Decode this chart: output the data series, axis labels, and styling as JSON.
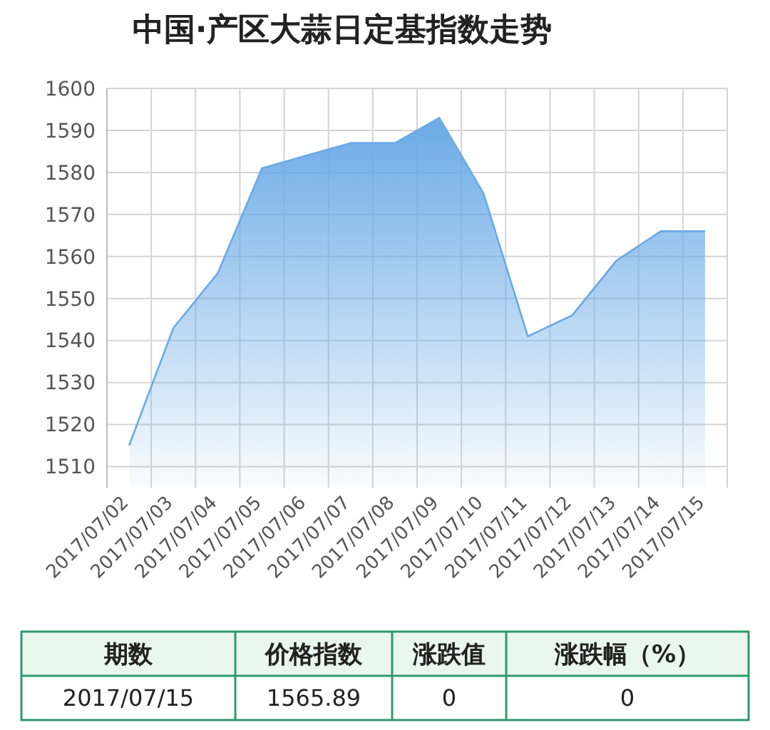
{
  "chart_data": {
    "type": "area",
    "title": "中国·产区大蒜日定基指数走势",
    "categories": [
      "2017/07/02",
      "2017/07/03",
      "2017/07/04",
      "2017/07/05",
      "2017/07/06",
      "2017/07/07",
      "2017/07/08",
      "2017/07/09",
      "2017/07/10",
      "2017/07/11",
      "2017/07/12",
      "2017/07/13",
      "2017/07/14",
      "2017/07/15"
    ],
    "series": [
      {
        "color": "#6aaae6",
        "values": [
          1515,
          1543,
          1556,
          1581,
          1584,
          1587,
          1587,
          1593,
          1575,
          1541,
          1546,
          1559,
          1566,
          1566
        ]
      }
    ],
    "ylim": [
      1505,
      1600
    ],
    "yticks": [
      1510,
      1520,
      1530,
      1540,
      1550,
      1560,
      1570,
      1580,
      1590,
      1600
    ],
    "grid": true,
    "annotations": [
      "期数",
      "价格指数",
      "涨跌值",
      "涨跌幅（%）",
      "2017/07/15",
      "1565.89",
      "0",
      "0"
    ]
  }
}
